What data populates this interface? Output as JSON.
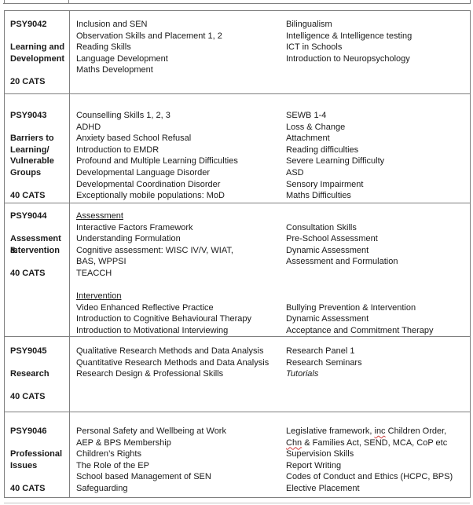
{
  "colors": {
    "border": "#7f7f7f",
    "faint_border": "#c4c4c4",
    "text": "#1a1a1a",
    "spellcheck_squiggle": "#d03c3c"
  },
  "document": {
    "type": "module-table",
    "rows": [
      {
        "code": "PSY9042",
        "title_lines": [
          "Learning and",
          "Development"
        ],
        "cats": "20 CATS",
        "col2": [
          "Inclusion and SEN",
          "Observation Skills and Placement 1, 2",
          "Reading Skills",
          "Language Development",
          "Maths Development"
        ],
        "col3": [
          "Bilingualism",
          "Intelligence & Intelligence testing",
          "ICT in Schools",
          "Introduction to Neuropsychology"
        ]
      },
      {
        "code": "PSY9043",
        "title_lines": [
          "Barriers to",
          "Learning/",
          "Vulnerable",
          "Groups"
        ],
        "cats": "40 CATS",
        "col2": [
          "Counselling Skills 1, 2, 3",
          "ADHD",
          "Anxiety based School Refusal",
          "Introduction to EMDR",
          "Profound and Multiple Learning Difficulties",
          "Developmental Language Disorder",
          "Developmental Coordination Disorder",
          "Exceptionally mobile populations: MoD"
        ],
        "col3": [
          "SEWB 1-4",
          "Loss & Change",
          "Attachment",
          "Reading difficulties",
          "Severe Learning Difficulty",
          "ASD",
          "Sensory Impairment",
          "Maths Difficulties"
        ]
      },
      {
        "code": "PSY9044",
        "title_lines": [
          "Assessment &",
          "Intervention"
        ],
        "cats": "40 CATS",
        "col2": [
          [
            {
              "t": "Assessment",
              "s": "u"
            }
          ],
          "Interactive Factors Framework",
          "Understanding Formulation",
          "Cognitive assessment: WISC IV/V, WIAT,",
          "BAS, WPPSI",
          "TEACCH",
          "",
          [
            {
              "t": "Intervention",
              "s": "u"
            }
          ],
          "Video Enhanced Reflective Practice",
          "Introduction to Cognitive Behavioural Therapy",
          "Introduction to Motivational Interviewing"
        ],
        "col3": [
          "",
          "Consultation Skills",
          "Pre-School Assessment",
          "Dynamic Assessment",
          "Assessment and Formulation",
          "",
          "",
          "",
          "Bullying Prevention & Intervention",
          "Dynamic Assessment",
          "Acceptance and Commitment Therapy"
        ]
      },
      {
        "code": "PSY9045",
        "title_lines": [
          "Research"
        ],
        "cats": "40 CATS",
        "col2": [
          "Qualitative Research Methods and Data Analysis",
          "Quantitative Research Methods and Data Analysis",
          "Research Design & Professional Skills"
        ],
        "col3": [
          "Research Panel 1",
          "Research Seminars",
          [
            {
              "t": "Tutorials",
              "s": "i"
            }
          ]
        ]
      },
      {
        "code": "PSY9046",
        "title_lines": [
          "Professional",
          "Issues"
        ],
        "cats": "40 CATS",
        "col2": [
          "Personal Safety and Wellbeing at Work",
          "AEP & BPS Membership",
          "Children’s Rights",
          "The Role of the EP",
          "School based Management of SEN",
          "Safeguarding"
        ],
        "col3": [
          [
            {
              "t": "Legislative framework, "
            },
            {
              "t": "inc",
              "s": "sq"
            },
            {
              "t": " Children Order,"
            }
          ],
          [
            {
              "t": "Chn",
              "s": "sq"
            },
            {
              "t": " & Families Act, SEND, MCA, CoP etc"
            }
          ],
          "Supervision Skills",
          "Report Writing",
          "Codes of Conduct and Ethics (HCPC, BPS)",
          "Elective Placement"
        ]
      }
    ]
  }
}
